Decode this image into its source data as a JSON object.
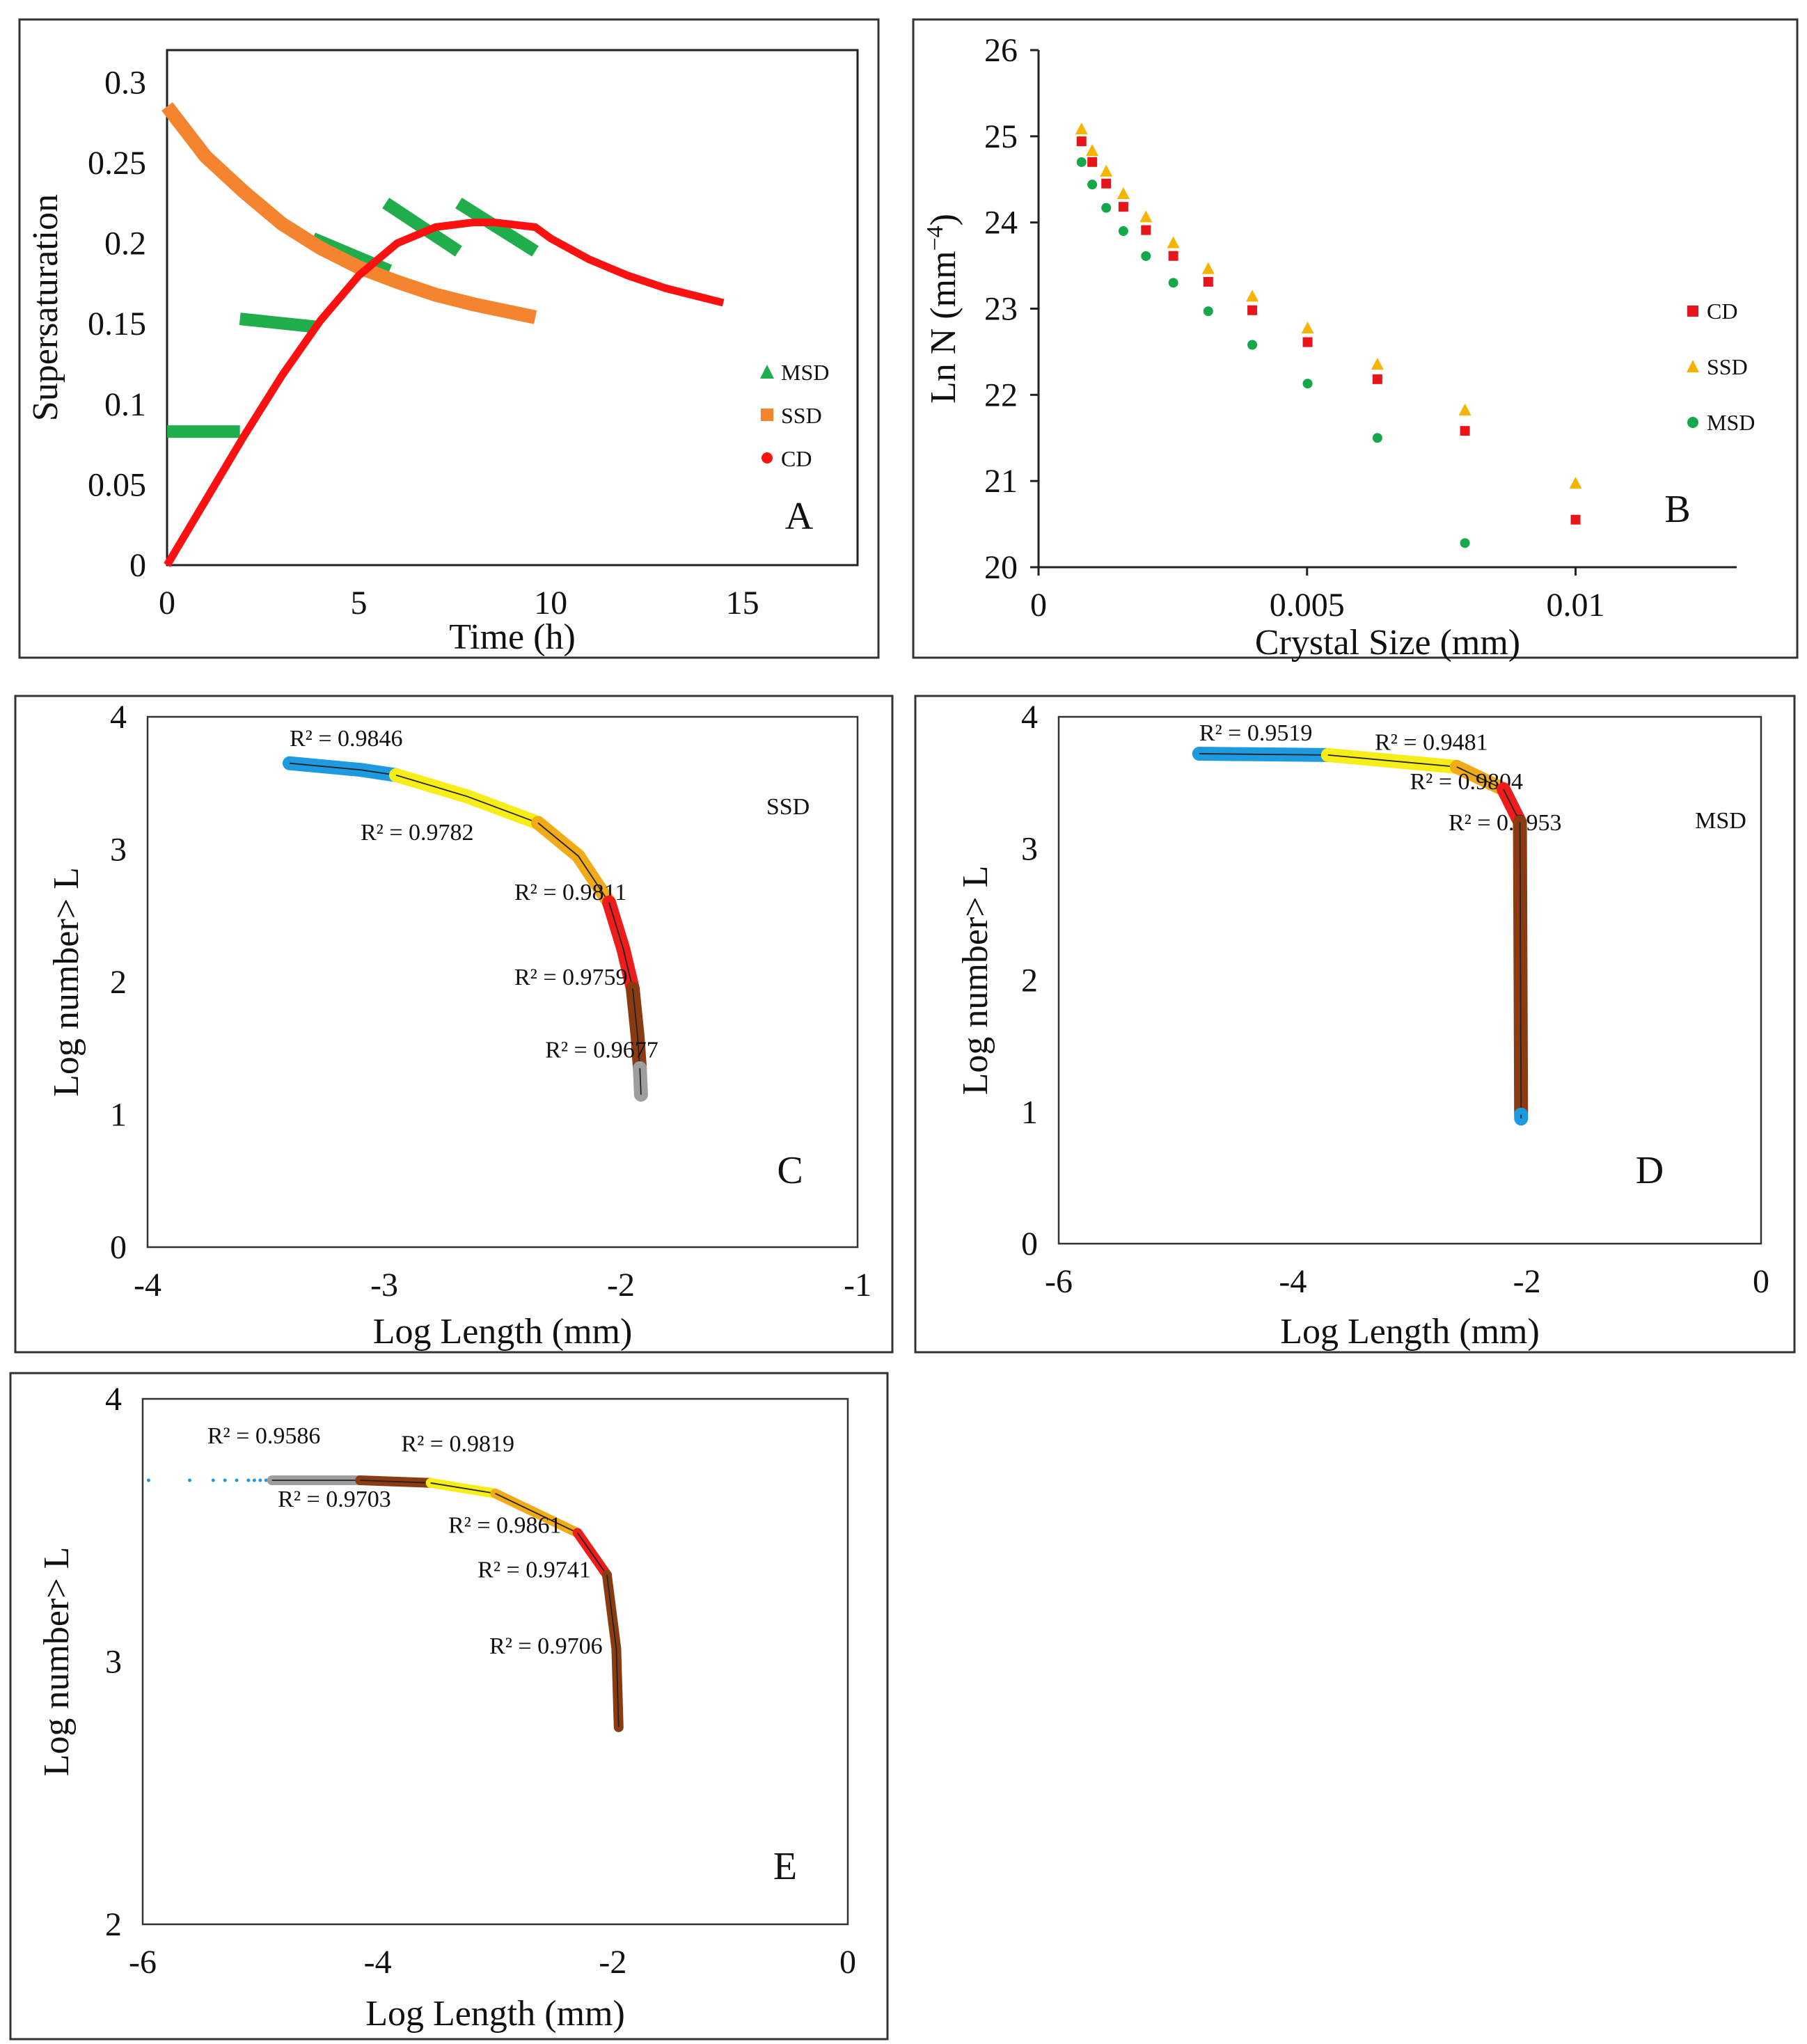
{
  "chart_data": [
    {
      "panel": "A",
      "type": "line",
      "panel_label": "A",
      "xlabel": "Time (h)",
      "ylabel": "Supersaturation",
      "xlim": [
        0,
        18
      ],
      "ylim": [
        0,
        0.32
      ],
      "xticks": [
        "0",
        "5",
        "10",
        "15"
      ],
      "yticks": [
        "0",
        "0.05",
        "0.1",
        "0.15",
        "0.2",
        "0.25",
        "0.3"
      ],
      "legend": [
        {
          "name": "MSD",
          "marker": "triangle",
          "color": "#1fae4b"
        },
        {
          "name": "SSD",
          "marker": "square",
          "color": "#f5842e"
        },
        {
          "name": "CD",
          "marker": "circle",
          "color": "#ff1010"
        }
      ],
      "series": [
        {
          "name": "MSD",
          "color": "#1fae4b",
          "segments": [
            [
              [
                0,
                0.083
              ],
              [
                1.9,
                0.083
              ]
            ],
            [
              [
                1.9,
                0.153
              ],
              [
                3.9,
                0.148
              ]
            ],
            [
              [
                3.8,
                0.203
              ],
              [
                5.8,
                0.183
              ]
            ],
            [
              [
                5.7,
                0.225
              ],
              [
                7.6,
                0.195
              ]
            ],
            [
              [
                7.6,
                0.225
              ],
              [
                9.6,
                0.195
              ]
            ]
          ]
        },
        {
          "name": "SSD",
          "color": "#f5842e",
          "x": [
            0,
            1,
            2,
            3,
            4,
            5,
            6,
            7,
            8,
            9,
            9.6
          ],
          "values": [
            0.285,
            0.254,
            0.232,
            0.212,
            0.197,
            0.185,
            0.176,
            0.168,
            0.162,
            0.157,
            0.154
          ]
        },
        {
          "name": "CD",
          "color": "#ff1010",
          "x": [
            0,
            1,
            2,
            3,
            4,
            5,
            6,
            7,
            8,
            8.5,
            9.6,
            10,
            11,
            12,
            13,
            14,
            14.5
          ],
          "values": [
            0,
            0.04,
            0.08,
            0.118,
            0.152,
            0.18,
            0.2,
            0.21,
            0.213,
            0.213,
            0.21,
            0.203,
            0.19,
            0.18,
            0.172,
            0.166,
            0.163
          ]
        }
      ]
    },
    {
      "panel": "B",
      "type": "scatter",
      "panel_label": "B",
      "xlabel": "Crystal Size (mm)",
      "ylabel": "Ln N (mm",
      "ylabel_exponent": "−4",
      "ylabel_close": ")",
      "xlim": [
        0,
        0.013
      ],
      "ylim": [
        20,
        26
      ],
      "xticks": [
        "0",
        "0.005",
        "0.01"
      ],
      "yticks": [
        "20",
        "21",
        "22",
        "23",
        "24",
        "25",
        "26"
      ],
      "legend": [
        {
          "name": "CD",
          "marker": "square",
          "color": "#e8141c"
        },
        {
          "name": "SSD",
          "marker": "triangle",
          "color": "#f5b400"
        },
        {
          "name": "MSD",
          "marker": "circle",
          "color": "#14a84a"
        }
      ],
      "x": [
        0.0008,
        0.001,
        0.00126,
        0.00158,
        0.002,
        0.00251,
        0.00316,
        0.00398,
        0.00501,
        0.00631,
        0.00794,
        0.01
      ],
      "series": [
        {
          "name": "SSD",
          "color": "#f5b400",
          "marker": "triangle",
          "values": [
            25.03,
            24.78,
            24.54,
            24.28,
            24.01,
            23.71,
            23.41,
            23.09,
            22.72,
            22.3,
            21.77,
            20.92
          ]
        },
        {
          "name": "CD",
          "color": "#e8141c",
          "marker": "square",
          "values": [
            24.99,
            24.75,
            24.5,
            24.23,
            23.96,
            23.66,
            23.36,
            23.03,
            22.66,
            22.23,
            21.63,
            20.6
          ]
        },
        {
          "name": "MSD",
          "color": "#14a84a",
          "marker": "circle",
          "values": [
            24.7,
            24.44,
            24.17,
            23.9,
            23.61,
            23.3,
            22.97,
            22.58,
            22.13,
            21.5,
            20.28,
            null
          ]
        }
      ]
    },
    {
      "panel": "C",
      "type": "line",
      "panel_label": "C",
      "series_tag": "SSD",
      "xlabel": "Log Length (mm)",
      "ylabel": "Log number> L",
      "xlim": [
        -4,
        -1
      ],
      "ylim": [
        0,
        4
      ],
      "xticks": [
        "-4",
        "-3",
        "-2",
        "-1"
      ],
      "yticks": [
        "0",
        "1",
        "2",
        "3",
        "4"
      ],
      "segments": [
        {
          "color": "#1e9be0",
          "points": [
            [
              -3.4,
              3.65
            ],
            [
              -3.1,
              3.6
            ],
            [
              -2.95,
              3.56
            ]
          ],
          "r2_label": "R² = 0.9846",
          "label_at": [
            -3.4,
            3.78
          ]
        },
        {
          "color": "#f6ee16",
          "points": [
            [
              -2.95,
              3.56
            ],
            [
              -2.65,
              3.4
            ],
            [
              -2.35,
              3.2
            ]
          ],
          "r2_label": "R² = 0.9782",
          "label_at": [
            -3.1,
            3.07
          ]
        },
        {
          "color": "#f2ab18",
          "points": [
            [
              -2.35,
              3.2
            ],
            [
              -2.18,
              2.95
            ],
            [
              -2.05,
              2.6
            ]
          ],
          "r2_label": "R² = 0.9811",
          "label_at": [
            -2.45,
            2.62
          ]
        },
        {
          "color": "#ef1c1c",
          "points": [
            [
              -2.05,
              2.6
            ],
            [
              -1.99,
              2.25
            ],
            [
              -1.95,
              1.95
            ]
          ],
          "r2_label": "R² = 0.9759",
          "label_at": [
            -2.45,
            1.98
          ]
        },
        {
          "color": "#8b3b12",
          "points": [
            [
              -1.95,
              1.95
            ],
            [
              -1.93,
              1.6
            ],
            [
              -1.92,
              1.35
            ]
          ],
          "r2_label": "R² = 0.9677",
          "label_at": [
            -2.32,
            1.43
          ]
        },
        {
          "color": "#9e9e9e",
          "points": [
            [
              -1.92,
              1.35
            ],
            [
              -1.915,
              1.15
            ]
          ],
          "r2_label": null,
          "label_at": null
        }
      ]
    },
    {
      "panel": "D",
      "type": "line",
      "panel_label": "D",
      "series_tag": "MSD",
      "xlabel": "Log Length (mm)",
      "ylabel": "Log number> L",
      "xlim": [
        -6,
        0
      ],
      "ylim": [
        0,
        4
      ],
      "xticks": [
        "-6",
        "-4",
        "-2",
        "0"
      ],
      "yticks": [
        "0",
        "1",
        "2",
        "3",
        "4"
      ],
      "segments": [
        {
          "color": "#1e9be0",
          "points": [
            [
              -4.8,
              3.72
            ],
            [
              -3.7,
              3.71
            ]
          ],
          "r2_label": "R² = 0.9519",
          "label_at": [
            -4.8,
            3.82
          ]
        },
        {
          "color": "#f6ee16",
          "points": [
            [
              -3.7,
              3.71
            ],
            [
              -2.6,
              3.62
            ]
          ],
          "r2_label": "R² = 0.9481",
          "label_at": [
            -3.3,
            3.75
          ]
        },
        {
          "color": "#f2ab18",
          "points": [
            [
              -2.6,
              3.62
            ],
            [
              -2.2,
              3.45
            ]
          ],
          "r2_label": "R² = 0.9804",
          "label_at": [
            -3.0,
            3.45
          ]
        },
        {
          "color": "#ef1c1c",
          "points": [
            [
              -2.2,
              3.45
            ],
            [
              -2.06,
              3.2
            ]
          ],
          "r2_label": "R² = 0.9953",
          "label_at": [
            -2.67,
            3.14
          ]
        },
        {
          "color": "#8b3b12",
          "points": [
            [
              -2.06,
              3.2
            ],
            [
              -2.05,
              0.98
            ]
          ],
          "r2_label": null,
          "label_at": null
        },
        {
          "color": "#1e9be0",
          "points": [
            [
              -2.05,
              0.98
            ],
            [
              -2.05,
              0.95
            ]
          ],
          "r2_label": null,
          "label_at": null
        }
      ]
    },
    {
      "panel": "E",
      "type": "line",
      "panel_label": "E",
      "xlabel": "Log Length (mm)",
      "ylabel": "Log number> L",
      "xlim": [
        -6,
        0
      ],
      "ylim": [
        2,
        4
      ],
      "xticks": [
        "-6",
        "-4",
        "-2",
        "0"
      ],
      "yticks": [
        "2",
        "3",
        "4"
      ],
      "dotted_series": {
        "color": "#1e9be0",
        "x": [
          -5.95,
          -5.6,
          -5.4,
          -5.3,
          -5.2,
          -5.1,
          -5.05,
          -5.0,
          -4.95,
          -4.9
        ],
        "y": 3.69
      },
      "segments": [
        {
          "color": "#9e9e9e",
          "points": [
            [
              -4.9,
              3.69
            ],
            [
              -4.15,
              3.69
            ]
          ],
          "r2_label": "R² = 0.9586",
          "label_at": [
            -5.45,
            3.83
          ]
        },
        {
          "color": "#8b3b12",
          "points": [
            [
              -4.15,
              3.69
            ],
            [
              -3.55,
              3.68
            ]
          ],
          "r2_label": "R² = 0.9703",
          "label_at": [
            -4.85,
            3.59
          ]
        },
        {
          "color": "#f6ee16",
          "points": [
            [
              -3.55,
              3.68
            ],
            [
              -3.0,
              3.64
            ]
          ],
          "r2_label": "R² = 0.9819",
          "label_at": [
            -3.8,
            3.8
          ]
        },
        {
          "color": "#f2ab18",
          "points": [
            [
              -3.0,
              3.64
            ],
            [
              -2.3,
              3.49
            ]
          ],
          "r2_label": "R² = 0.9861",
          "label_at": [
            -3.4,
            3.49
          ]
        },
        {
          "color": "#ef1c1c",
          "points": [
            [
              -2.3,
              3.49
            ],
            [
              -2.05,
              3.33
            ]
          ],
          "r2_label": "R² = 0.9741",
          "label_at": [
            -3.15,
            3.32
          ]
        },
        {
          "color": "#8b3b12",
          "points": [
            [
              -2.05,
              3.33
            ],
            [
              -1.97,
              3.05
            ],
            [
              -1.95,
              2.75
            ]
          ],
          "r2_label": "R² = 0.9706",
          "label_at": [
            -3.05,
            3.03
          ]
        }
      ]
    }
  ]
}
